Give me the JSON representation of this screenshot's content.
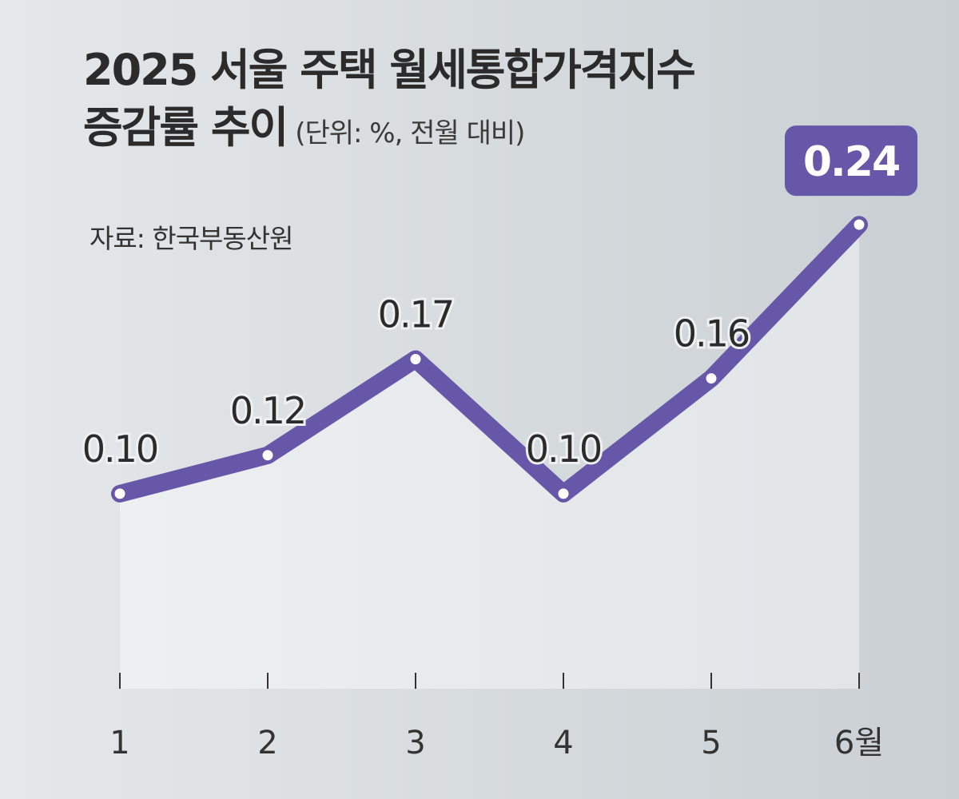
{
  "header": {
    "title_line1": "2025 서울 주택 월세통합가격지수",
    "title_line2": "증감률 추이",
    "unit": "(단위: %, 전월 대비)",
    "source": "자료: 한국부동산원"
  },
  "colors": {
    "line": "#6757a8",
    "highlight_box": "#6757a8",
    "area_fill": "#eaedef",
    "text": "#333333"
  },
  "chart_data": {
    "type": "area",
    "title": "2025 서울 주택 월세통합가격지수 증감률 추이",
    "categories": [
      "1",
      "2",
      "3",
      "4",
      "5",
      "6월"
    ],
    "series": [
      {
        "values": [
          0.1,
          0.12,
          0.17,
          0.1,
          0.16,
          0.24
        ]
      }
    ],
    "data_labels": [
      "0.10",
      "0.12",
      "0.17",
      "0.10",
      "0.16",
      "0.24"
    ],
    "highlight_index": 5,
    "ylim": [
      -0.11,
      0.27
    ],
    "grid": false,
    "y_axis_shown": false
  }
}
